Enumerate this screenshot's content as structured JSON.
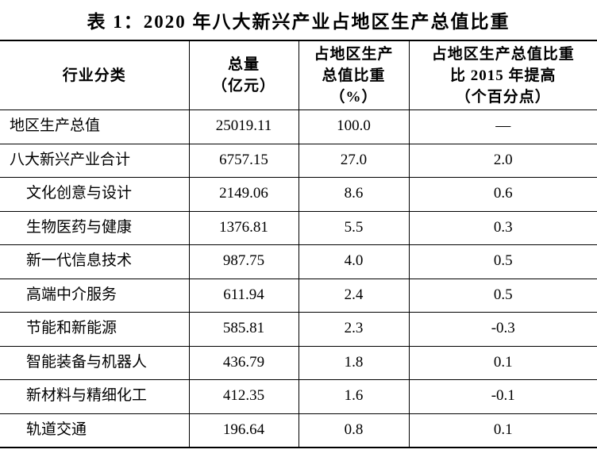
{
  "page": {
    "title": "表 1：2020 年八大新兴产业占地区生产总值比重"
  },
  "colors": {
    "text": "#000000",
    "background": "#ffffff",
    "border": "#000000"
  },
  "table": {
    "headers": {
      "industry": "行业分类",
      "total": "总量\n（亿元）",
      "share": "占地区生产\n总值比重\n（%）",
      "change": "占地区生产总值比重\n比 2015 年提高\n（个百分点）"
    },
    "rows": [
      {
        "industry": "地区生产总值",
        "total": "25019.11",
        "share": "100.0",
        "change": "—",
        "indent": false
      },
      {
        "industry": "八大新兴产业合计",
        "total": "6757.15",
        "share": "27.0",
        "change": "2.0",
        "indent": false
      },
      {
        "industry": "文化创意与设计",
        "total": "2149.06",
        "share": "8.6",
        "change": "0.6",
        "indent": true
      },
      {
        "industry": "生物医药与健康",
        "total": "1376.81",
        "share": "5.5",
        "change": "0.3",
        "indent": true
      },
      {
        "industry": "新一代信息技术",
        "total": "987.75",
        "share": "4.0",
        "change": "0.5",
        "indent": true
      },
      {
        "industry": "高端中介服务",
        "total": "611.94",
        "share": "2.4",
        "change": "0.5",
        "indent": true
      },
      {
        "industry": "节能和新能源",
        "total": "585.81",
        "share": "2.3",
        "change": "-0.3",
        "indent": true
      },
      {
        "industry": "智能装备与机器人",
        "total": "436.79",
        "share": "1.8",
        "change": "0.1",
        "indent": true
      },
      {
        "industry": "新材料与精细化工",
        "total": "412.35",
        "share": "1.6",
        "change": "-0.1",
        "indent": true
      },
      {
        "industry": "轨道交通",
        "total": "196.64",
        "share": "0.8",
        "change": "0.1",
        "indent": true
      }
    ]
  }
}
